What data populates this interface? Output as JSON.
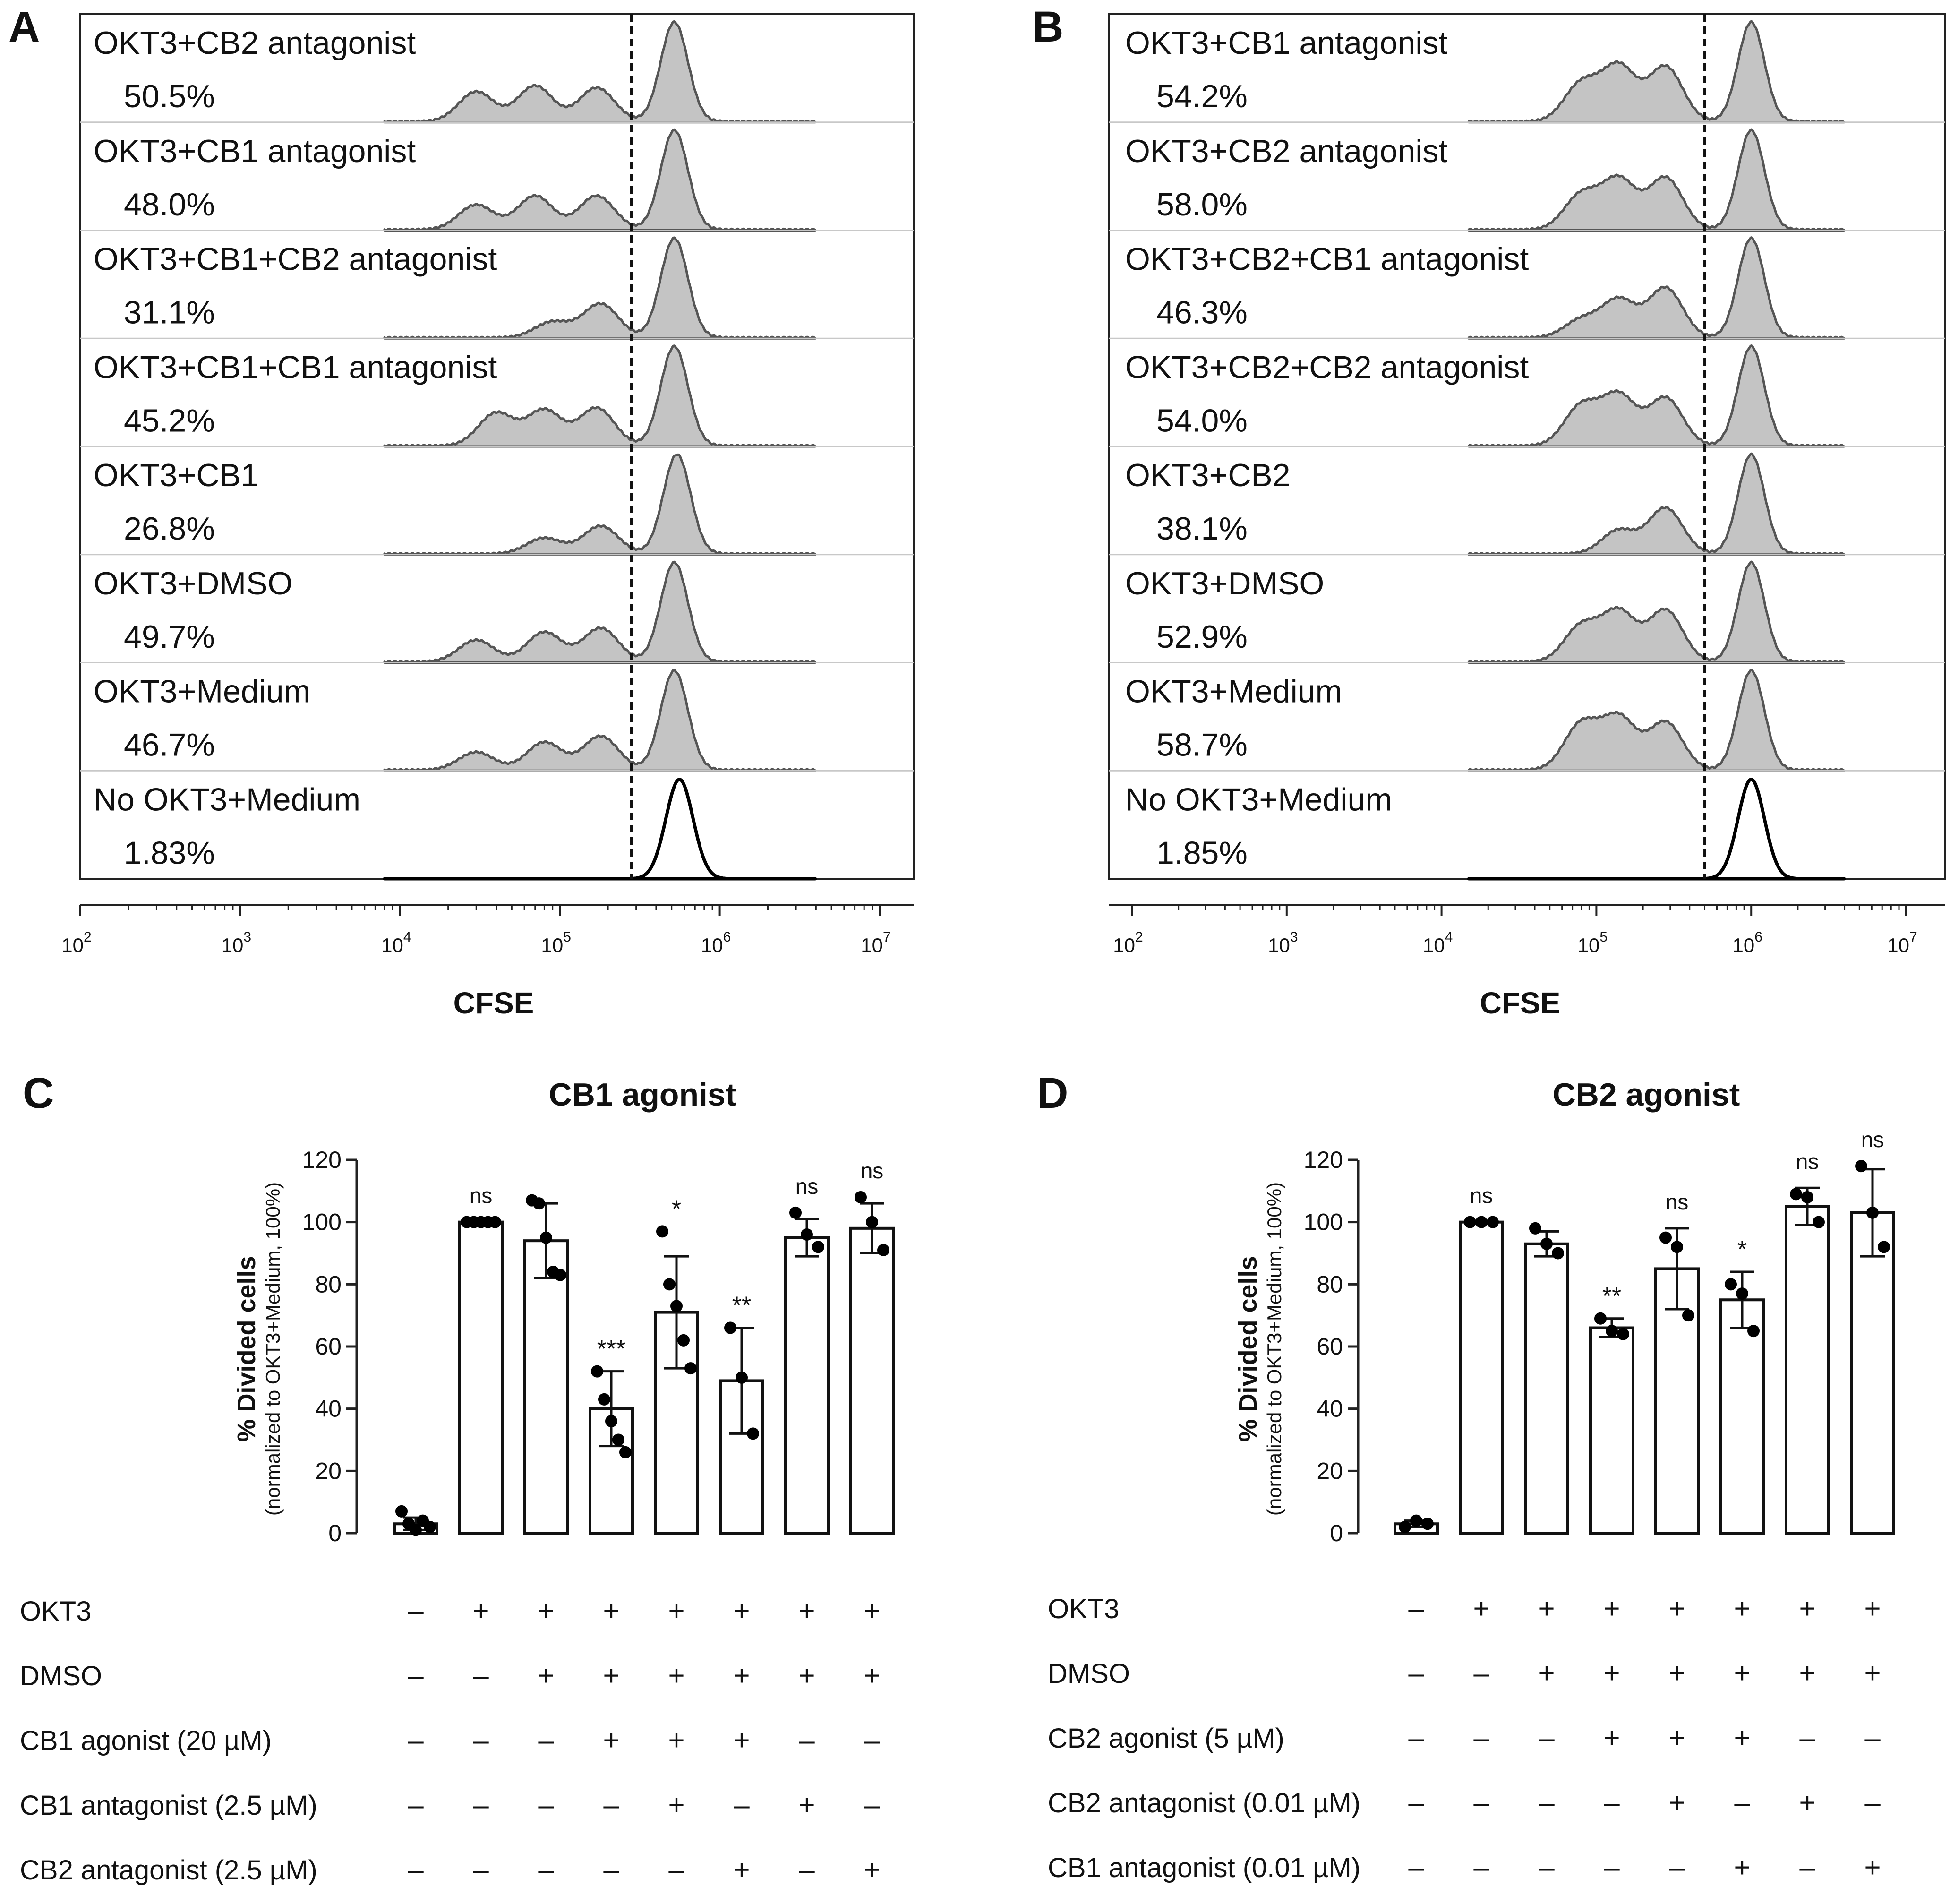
{
  "panels": {
    "A": {
      "label": "A"
    },
    "B": {
      "label": "B"
    },
    "C": {
      "label": "C"
    },
    "D": {
      "label": "D"
    }
  },
  "chart_data": [
    {
      "panel": "A",
      "type": "histogram-stack",
      "xlabel": "CFSE",
      "x_scale": "log10",
      "xlim": [
        100,
        10000000
      ],
      "tick_labels": [
        "10^2",
        "10^3",
        "10^4",
        "10^5",
        "10^6",
        "10^7"
      ],
      "gate_x": 280000,
      "tracks": [
        {
          "label": "OKT3+CB2 antagonist",
          "divided_percent": "50.5%",
          "peaks": [
            [
              30000,
              0.3
            ],
            [
              70000,
              0.36
            ],
            [
              170000,
              0.34
            ],
            [
              520000,
              1.0
            ]
          ]
        },
        {
          "label": "OKT3+CB1 antagonist",
          "divided_percent": "48.0%",
          "peaks": [
            [
              30000,
              0.25
            ],
            [
              70000,
              0.34
            ],
            [
              170000,
              0.34
            ],
            [
              520000,
              1.0
            ]
          ]
        },
        {
          "label": "OKT3+CB1+CB2 antagonist",
          "divided_percent": "31.1%",
          "peaks": [
            [
              90000,
              0.16
            ],
            [
              180000,
              0.34
            ],
            [
              520000,
              1.0
            ]
          ]
        },
        {
          "label": "OKT3+CB1+CB1 antagonist",
          "divided_percent": "45.2%",
          "peaks": [
            [
              40000,
              0.33
            ],
            [
              80000,
              0.36
            ],
            [
              170000,
              0.38
            ],
            [
              520000,
              1.0
            ]
          ]
        },
        {
          "label": "OKT3+CB1",
          "divided_percent": "26.8%",
          "peaks": [
            [
              80000,
              0.16
            ],
            [
              180000,
              0.28
            ],
            [
              540000,
              1.0
            ]
          ]
        },
        {
          "label": "OKT3+DMSO",
          "divided_percent": "49.7%",
          "peaks": [
            [
              30000,
              0.22
            ],
            [
              80000,
              0.3
            ],
            [
              180000,
              0.34
            ],
            [
              520000,
              1.0
            ]
          ]
        },
        {
          "label": "OKT3+Medium",
          "divided_percent": "46.7%",
          "peaks": [
            [
              30000,
              0.18
            ],
            [
              80000,
              0.28
            ],
            [
              180000,
              0.34
            ],
            [
              520000,
              1.0
            ]
          ]
        },
        {
          "label": "No OKT3+Medium",
          "divided_percent": "1.83%",
          "peaks": [
            [
              560000,
              1.0
            ]
          ]
        }
      ]
    },
    {
      "panel": "B",
      "type": "histogram-stack",
      "xlabel": "CFSE",
      "x_scale": "log10",
      "xlim": [
        100,
        10000000
      ],
      "tick_labels": [
        "10^2",
        "10^3",
        "10^4",
        "10^5",
        "10^6",
        "10^7"
      ],
      "gate_x": 500000,
      "tracks": [
        {
          "label": "OKT3+CB1 antagonist",
          "divided_percent": "54.2%",
          "peaks": [
            [
              80000,
              0.38
            ],
            [
              140000,
              0.55
            ],
            [
              280000,
              0.55
            ],
            [
              1000000,
              1.0
            ]
          ]
        },
        {
          "label": "OKT3+CB2 antagonist",
          "divided_percent": "58.0%",
          "peaks": [
            [
              80000,
              0.35
            ],
            [
              140000,
              0.5
            ],
            [
              280000,
              0.52
            ],
            [
              1000000,
              1.0
            ]
          ]
        },
        {
          "label": "OKT3+CB2+CB1 antagonist",
          "divided_percent": "46.3%",
          "peaks": [
            [
              80000,
              0.18
            ],
            [
              140000,
              0.38
            ],
            [
              280000,
              0.5
            ],
            [
              1000000,
              1.0
            ]
          ]
        },
        {
          "label": "OKT3+CB2+CB2 antagonist",
          "divided_percent": "54.0%",
          "peaks": [
            [
              80000,
              0.4
            ],
            [
              140000,
              0.5
            ],
            [
              280000,
              0.48
            ],
            [
              1000000,
              1.0
            ]
          ]
        },
        {
          "label": "OKT3+CB2",
          "divided_percent": "38.1%",
          "peaks": [
            [
              140000,
              0.24
            ],
            [
              280000,
              0.46
            ],
            [
              1000000,
              1.0
            ]
          ]
        },
        {
          "label": "OKT3+DMSO",
          "divided_percent": "52.9%",
          "peaks": [
            [
              80000,
              0.36
            ],
            [
              140000,
              0.5
            ],
            [
              280000,
              0.52
            ],
            [
              1000000,
              1.0
            ]
          ]
        },
        {
          "label": "OKT3+Medium",
          "divided_percent": "58.7%",
          "peaks": [
            [
              80000,
              0.46
            ],
            [
              140000,
              0.52
            ],
            [
              280000,
              0.48
            ],
            [
              1000000,
              1.0
            ]
          ]
        },
        {
          "label": "No OKT3+Medium",
          "divided_percent": "1.85%",
          "peaks": [
            [
              1000000,
              1.0
            ]
          ]
        }
      ]
    },
    {
      "panel": "C",
      "type": "bar",
      "title": "CB1 agonist",
      "ylabel": "% Divided cells",
      "ylabel_sub": "(normalized to OKT3+Medium, 100%)",
      "ylim": [
        0,
        120
      ],
      "yticks": [
        "0",
        "20",
        "40",
        "60",
        "80",
        "100",
        "120"
      ],
      "bars": [
        {
          "mean": 3,
          "sd": 2,
          "points": [
            7,
            3,
            1,
            4,
            2
          ],
          "sig": ""
        },
        {
          "mean": 100,
          "sd": 0,
          "points": [
            100,
            100,
            100,
            100,
            100
          ],
          "sig": "ns"
        },
        {
          "mean": 94,
          "sd": 12,
          "points": [
            107,
            106,
            95,
            84,
            83
          ],
          "sig": ""
        },
        {
          "mean": 40,
          "sd": 12,
          "points": [
            52,
            43,
            36,
            30,
            26
          ],
          "sig": "***"
        },
        {
          "mean": 71,
          "sd": 18,
          "points": [
            97,
            80,
            73,
            62,
            53
          ],
          "sig": "*"
        },
        {
          "mean": 49,
          "sd": 17,
          "points": [
            66,
            50,
            32
          ],
          "sig": "**"
        },
        {
          "mean": 95,
          "sd": 6,
          "points": [
            103,
            96,
            92
          ],
          "sig": "ns"
        },
        {
          "mean": 98,
          "sd": 8,
          "points": [
            108,
            100,
            91
          ],
          "sig": "ns"
        }
      ],
      "conditions": [
        {
          "label": "OKT3",
          "marks": [
            "–",
            "+",
            "+",
            "+",
            "+",
            "+",
            "+",
            "+"
          ]
        },
        {
          "label": "DMSO",
          "marks": [
            "–",
            "–",
            "+",
            "+",
            "+",
            "+",
            "+",
            "+"
          ]
        },
        {
          "label": "CB1 agonist (20 µM)",
          "marks": [
            "–",
            "–",
            "–",
            "+",
            "+",
            "+",
            "–",
            "–"
          ]
        },
        {
          "label": "CB1 antagonist (2.5 µM)",
          "marks": [
            "–",
            "–",
            "–",
            "–",
            "+",
            "–",
            "+",
            "–"
          ]
        },
        {
          "label": "CB2 antagonist (2.5 µM)",
          "marks": [
            "–",
            "–",
            "–",
            "–",
            "–",
            "+",
            "–",
            "+"
          ]
        }
      ]
    },
    {
      "panel": "D",
      "type": "bar",
      "title": "CB2 agonist",
      "ylabel": "% Divided cells",
      "ylabel_sub": "(normalized to OKT3+Medium, 100%)",
      "ylim": [
        0,
        120
      ],
      "yticks": [
        "0",
        "20",
        "40",
        "60",
        "80",
        "100",
        "120"
      ],
      "bars": [
        {
          "mean": 3,
          "sd": 1,
          "points": [
            2,
            4,
            3
          ],
          "sig": ""
        },
        {
          "mean": 100,
          "sd": 0,
          "points": [
            100,
            100,
            100
          ],
          "sig": "ns"
        },
        {
          "mean": 93,
          "sd": 4,
          "points": [
            98,
            93,
            90
          ],
          "sig": ""
        },
        {
          "mean": 66,
          "sd": 3,
          "points": [
            69,
            65,
            64
          ],
          "sig": "**"
        },
        {
          "mean": 85,
          "sd": 13,
          "points": [
            95,
            92,
            70
          ],
          "sig": "ns"
        },
        {
          "mean": 75,
          "sd": 9,
          "points": [
            80,
            77,
            65
          ],
          "sig": "*"
        },
        {
          "mean": 105,
          "sd": 6,
          "points": [
            109,
            108,
            100
          ],
          "sig": "ns"
        },
        {
          "mean": 103,
          "sd": 14,
          "points": [
            118,
            103,
            92
          ],
          "sig": "ns"
        }
      ],
      "conditions": [
        {
          "label": "OKT3",
          "marks": [
            "–",
            "+",
            "+",
            "+",
            "+",
            "+",
            "+",
            "+"
          ]
        },
        {
          "label": "DMSO",
          "marks": [
            "–",
            "–",
            "+",
            "+",
            "+",
            "+",
            "+",
            "+"
          ]
        },
        {
          "label": "CB2 agonist (5 µM)",
          "marks": [
            "–",
            "–",
            "–",
            "+",
            "+",
            "+",
            "–",
            "–"
          ]
        },
        {
          "label": "CB2 antagonist (0.01 µM)",
          "marks": [
            "–",
            "–",
            "–",
            "–",
            "+",
            "–",
            "+",
            "–"
          ]
        },
        {
          "label": "CB1 antagonist (0.01 µM)",
          "marks": [
            "–",
            "–",
            "–",
            "–",
            "–",
            "+",
            "–",
            "+"
          ]
        }
      ]
    }
  ]
}
